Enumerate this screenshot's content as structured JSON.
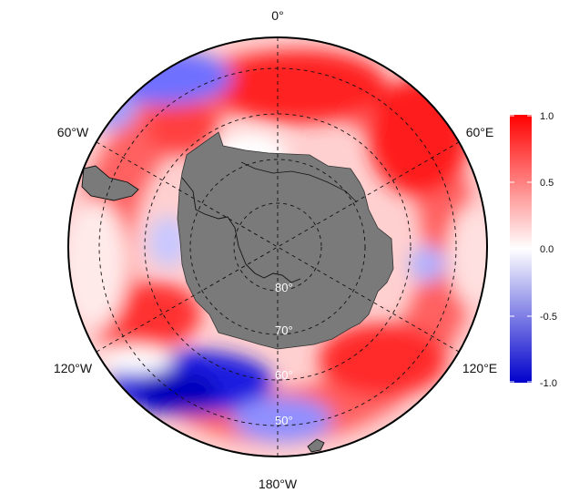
{
  "map": {
    "projection": "south-polar-stereographic",
    "longitude_labels": {
      "top": "0°",
      "upper_left": "60°W",
      "upper_right": "60°E",
      "lower_left": "120°W",
      "lower_right": "120°E",
      "bottom": "180°W"
    },
    "latitude_labels": [
      "80°",
      "70°",
      "60°",
      "50°"
    ],
    "colors": {
      "land": "#7a7a7a",
      "coast": "#111111",
      "positive": "#ff0000",
      "neutral": "#ffffff",
      "negative": "#0000cc"
    }
  },
  "colorbar": {
    "min": -1.0,
    "max": 1.0,
    "ticks": [
      "1.0",
      "0.5",
      "0.0",
      "-0.5",
      "-1.0"
    ]
  }
}
